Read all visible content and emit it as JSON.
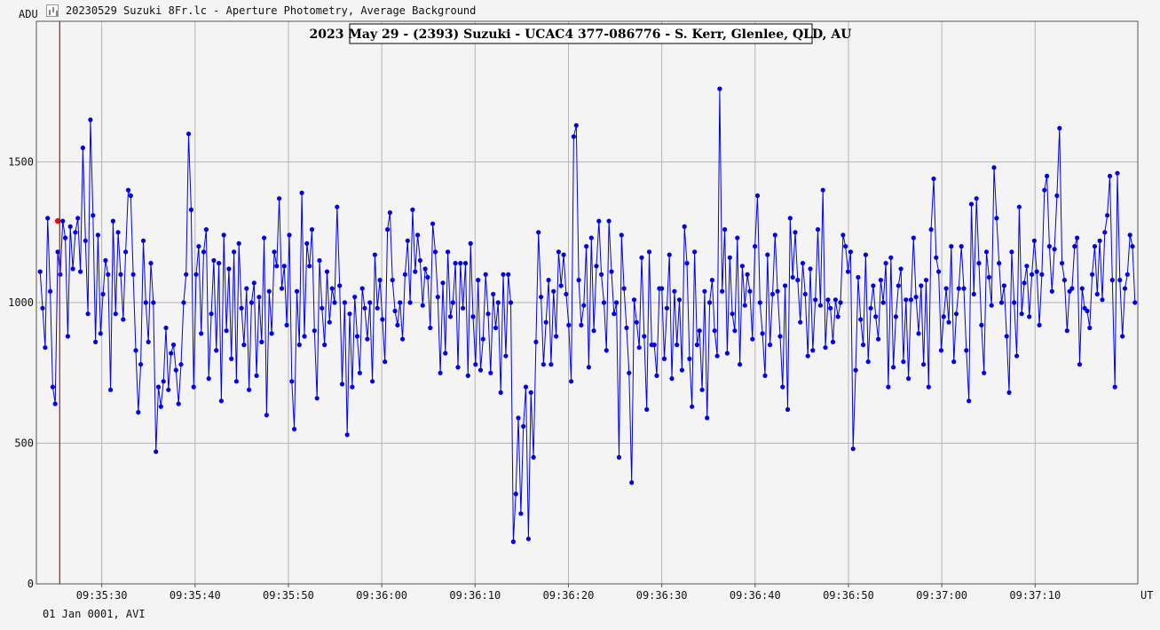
{
  "window": {
    "title": "20230529 Suzuki 8Fr.lc - Aperture Photometry, Average Background",
    "footer": "01 Jan 0001, AVI"
  },
  "chart_data": {
    "type": "line",
    "title": "2023 May 29 - (2393) Suzuki - UCAC4 377-086776 - S. Kerr, Glenlee, QLD, AU",
    "ylabel": "ADU",
    "xlabel": "UT",
    "ylim": [
      0,
      2000
    ],
    "yticks": [
      0,
      500,
      1000,
      1500
    ],
    "xlim": [
      "09:35:23",
      "09:37:21"
    ],
    "xticks": [
      "09:35:30",
      "09:35:40",
      "09:35:50",
      "09:36:00",
      "09:36:10",
      "09:36:20",
      "09:36:30",
      "09:36:40",
      "09:36:50",
      "09:37:00",
      "09:37:10"
    ],
    "grid": true,
    "cursor_time": "09:35:25.5",
    "highlight_point": {
      "x": "09:35:25.3",
      "y": 1290
    },
    "series": [
      {
        "color": "#0000ee",
        "x_start": "09:35:23.4",
        "x_end": "09:37:20.7",
        "values": [
          1110,
          980,
          840,
          1300,
          1040,
          700,
          640,
          1180,
          1100,
          1290,
          1230,
          880,
          1270,
          1120,
          1250,
          1300,
          1110,
          1550,
          1220,
          960,
          1650,
          1310,
          860,
          1240,
          890,
          1030,
          1150,
          1100,
          690,
          1290,
          960,
          1250,
          1100,
          940,
          1180,
          1400,
          1380,
          1100,
          830,
          610,
          780,
          1220,
          1000,
          860,
          1140,
          1000,
          470,
          700,
          630,
          720,
          910,
          690,
          820,
          850,
          760,
          640,
          780,
          1000,
          1100,
          1600,
          1330,
          700,
          1100,
          1200,
          890,
          1180,
          1260,
          730,
          960,
          1150,
          830,
          1140,
          650,
          1240,
          900,
          1120,
          800,
          1180,
          720,
          1210,
          980,
          850,
          1050,
          690,
          1000,
          1070,
          740,
          1020,
          860,
          1230,
          600,
          1040,
          890,
          1180,
          1130,
          1370,
          1050,
          1130,
          920,
          1240,
          720,
          550,
          1040,
          850,
          1390,
          880,
          1210,
          1130,
          1260,
          900,
          660,
          1150,
          980,
          850,
          1110,
          930,
          1050,
          1000,
          1340,
          1060,
          710,
          1000,
          530,
          960,
          700,
          1020,
          880,
          750,
          1050,
          980,
          870,
          1000,
          720,
          1170,
          980,
          1080,
          940,
          790,
          1260,
          1320,
          1080,
          970,
          920,
          1000,
          870,
          1100,
          1220,
          1000,
          1330,
          1110,
          1240,
          1150,
          990,
          1120,
          1090,
          910,
          1280,
          1180,
          1020,
          750,
          1070,
          820,
          1180,
          950,
          1000,
          1140,
          770,
          1140,
          980,
          1140,
          740,
          1210,
          950,
          780,
          1080,
          760,
          870,
          1100,
          960,
          750,
          1030,
          910,
          1000,
          680,
          1100,
          810,
          1100,
          1000,
          150,
          320,
          590,
          250,
          560,
          700,
          160,
          680,
          450,
          860,
          1250,
          1020,
          780,
          930,
          1080,
          780,
          1040,
          880,
          1180,
          1060,
          1170,
          1030,
          920,
          720,
          1590,
          1630,
          1080,
          920,
          990,
          1200,
          770,
          1230,
          900,
          1130,
          1290,
          1100,
          1000,
          830,
          1290,
          1110,
          960,
          1000,
          450,
          1240,
          1050,
          910,
          750,
          360,
          1010,
          930,
          840,
          1160,
          880,
          620,
          1180,
          850,
          850,
          740,
          1050,
          1050,
          800,
          980,
          1170,
          730,
          1040,
          850,
          1010,
          760,
          1270,
          1140,
          800,
          630,
          1180,
          850,
          900,
          690,
          1040,
          590,
          1000,
          1080,
          900,
          810,
          1760,
          1040,
          1260,
          820,
          1160,
          960,
          900,
          1230,
          780,
          1130,
          990,
          1100,
          1040,
          870,
          1200,
          1380,
          1000,
          890,
          740,
          1170,
          850,
          1030,
          1240,
          1040,
          880,
          700,
          1060,
          620,
          1300,
          1090,
          1250,
          1080,
          930,
          1140,
          1030,
          810,
          1120,
          830,
          1010,
          1260,
          990,
          1400,
          840,
          1010,
          980,
          860,
          1010,
          950,
          1000,
          1240,
          1200,
          1110,
          1180,
          480,
          760,
          1090,
          940,
          850,
          1170,
          790,
          980,
          1060,
          950,
          870,
          1080,
          1000,
          1140,
          700,
          1160,
          770,
          950,
          1060,
          1120,
          790,
          1010,
          730,
          1010,
          1230,
          1020,
          890,
          1060,
          780,
          1080,
          700,
          1260,
          1440,
          1160,
          1110,
          830,
          950,
          1050,
          930,
          1200,
          790,
          960,
          1050,
          1200,
          1050,
          830,
          650,
          1350,
          1030,
          1370,
          1140,
          920,
          750,
          1180,
          1090,
          990,
          1480,
          1300,
          1140,
          1000,
          1060,
          880,
          680,
          1180,
          1000,
          810,
          1340,
          960,
          1070,
          1130,
          950,
          1100,
          1220,
          1110,
          920,
          1100,
          1400,
          1450,
          1200,
          1040,
          1190,
          1380,
          1620,
          1140,
          1080,
          900,
          1040,
          1050,
          1200,
          1230,
          780,
          1050,
          980,
          970,
          910,
          1100,
          1200,
          1030,
          1220,
          1010,
          1250,
          1310,
          1450,
          1080,
          700,
          1460,
          1080,
          880,
          1050,
          1100,
          1240,
          1200,
          1000
        ]
      }
    ]
  }
}
